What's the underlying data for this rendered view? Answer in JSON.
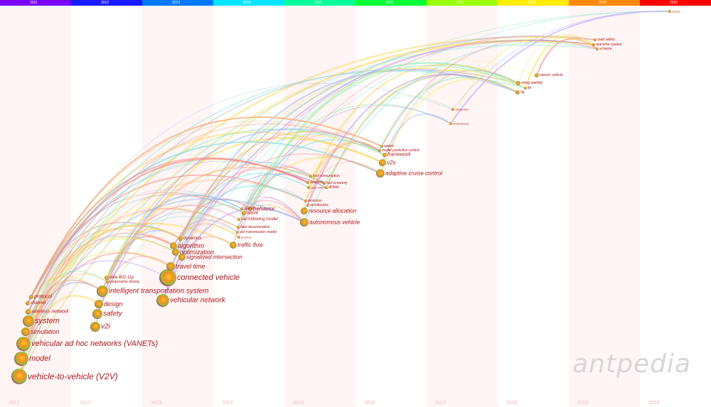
{
  "years": [
    "2011",
    "2012",
    "2013",
    "2014",
    "2015",
    "2016",
    "2017",
    "2018",
    "2019",
    "2020"
  ],
  "year_colors": [
    "#7a00ff",
    "#1a1aff",
    "#0077ff",
    "#00e5ff",
    "#00ff99",
    "#00ff33",
    "#99ff00",
    "#ffee00",
    "#ff8800",
    "#ff0000"
  ],
  "keywords": [
    {
      "label": "vehicle-to-vehicle (V2V)",
      "col": 0,
      "r": 11
    },
    {
      "label": "model",
      "col": 0,
      "r": 10
    },
    {
      "label": "vehicular ad hoc networks (VANETs)",
      "col": 0,
      "r": 10
    },
    {
      "label": "system",
      "col": 0,
      "r": 8
    },
    {
      "label": "simulation",
      "col": 0,
      "r": 6
    },
    {
      "label": "wireless network",
      "col": 0,
      "r": 4
    },
    {
      "label": "channel",
      "col": 0,
      "r": 3
    },
    {
      "label": "protocol",
      "col": 0,
      "r": 3
    },
    {
      "label": "intelligent transportation system",
      "col": 1,
      "r": 8
    },
    {
      "label": "design",
      "col": 1,
      "r": 6
    },
    {
      "label": "safety",
      "col": 1,
      "r": 7
    },
    {
      "label": "v2i",
      "col": 1,
      "r": 7
    },
    {
      "label": "ieee 802.11p",
      "col": 1,
      "r": 3
    },
    {
      "label": "cooperative driving",
      "col": 1,
      "r": 2
    },
    {
      "label": "connected vehicle",
      "col": 2,
      "r": 12
    },
    {
      "label": "vehicular network",
      "col": 2,
      "r": 9
    },
    {
      "label": "travel time",
      "col": 2,
      "r": 6
    },
    {
      "label": "algorithm",
      "col": 2,
      "r": 5
    },
    {
      "label": "optimization",
      "col": 2,
      "r": 5
    },
    {
      "label": "signalized intersection",
      "col": 2,
      "r": 5
    },
    {
      "label": "dynamics",
      "col": 2,
      "r": 3
    },
    {
      "label": "traffic flow",
      "col": 3,
      "r": 5
    },
    {
      "label": "behavior",
      "col": 3,
      "r": 3
    },
    {
      "label": "wave",
      "col": 3,
      "r": 3
    },
    {
      "label": "stand",
      "col": 3,
      "r": 2
    },
    {
      "label": "car-following model",
      "col": 3,
      "r": 2
    },
    {
      "label": "data dissemination",
      "col": 3,
      "r": 2
    },
    {
      "label": "cell transmission model",
      "col": 3,
      "r": 2
    },
    {
      "label": "protocol",
      "col": 3,
      "r": 2
    },
    {
      "label": "autonomous vehicle",
      "col": 4,
      "r": 6
    },
    {
      "label": "resource allocation",
      "col": 4,
      "r": 5
    },
    {
      "label": "fuel consumption",
      "col": 4,
      "r": 2
    },
    {
      "label": "fuel economy",
      "col": 4,
      "r": 2
    },
    {
      "label": "reliability",
      "col": 4,
      "r": 2
    },
    {
      "label": "state vehicle",
      "col": 4,
      "r": 2
    },
    {
      "label": "driver",
      "col": 4,
      "r": 2
    },
    {
      "label": "architecture",
      "col": 4,
      "r": 2
    },
    {
      "label": "emission",
      "col": 4,
      "r": 2
    },
    {
      "label": "adaptive cruise control",
      "col": 5,
      "r": 6
    },
    {
      "label": "v2x",
      "col": 5,
      "r": 5
    },
    {
      "label": "framework",
      "col": 5,
      "r": 3
    },
    {
      "label": "model predictive control",
      "col": 5,
      "r": 2
    },
    {
      "label": "speed",
      "col": 5,
      "r": 2
    },
    {
      "label": "congestion",
      "col": 6,
      "r": 2
    },
    {
      "label": "environment",
      "col": 6,
      "r": 2
    },
    {
      "label": "electric vehicle",
      "col": 7,
      "r": 3
    },
    {
      "label": "string stability",
      "col": 7,
      "r": 3
    },
    {
      "label": "lte",
      "col": 7,
      "r": 2
    },
    {
      "label": "5g",
      "col": 7,
      "r": 3
    },
    {
      "label": "road safety",
      "col": 8,
      "r": 2
    },
    {
      "label": "real-time system",
      "col": 8,
      "r": 2
    },
    {
      "label": "scheme",
      "col": 8,
      "r": 2
    },
    {
      "label": "sensor",
      "col": 9,
      "r": 2
    }
  ],
  "watermark": "antpedia"
}
